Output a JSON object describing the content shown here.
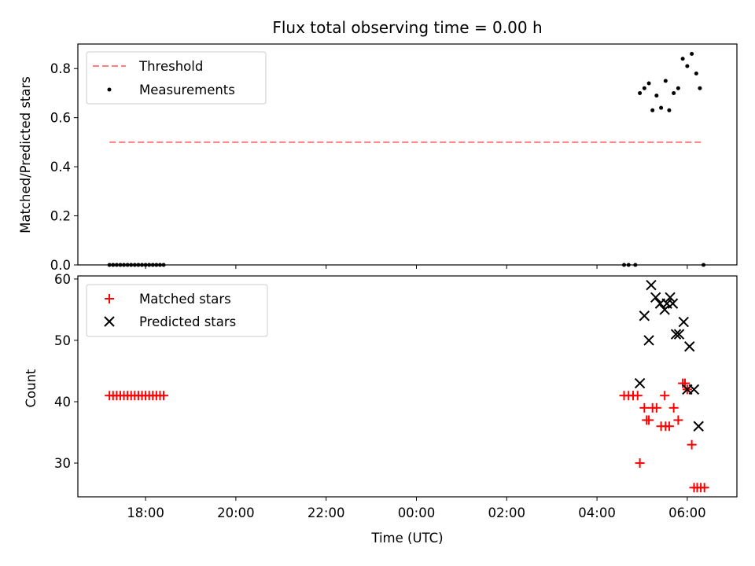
{
  "chart_data": [
    {
      "type": "scatter",
      "title": "Flux total observing time = 0.00 h",
      "xlabel": "",
      "ylabel": "Matched/Predicted stars",
      "ylim": [
        0,
        0.9
      ],
      "yticks": [
        0.0,
        0.2,
        0.4,
        0.6,
        0.8
      ],
      "ytick_labels": [
        "0.0",
        "0.2",
        "0.4",
        "0.6",
        "0.8"
      ],
      "xlim_hours": [
        16.5,
        31.1
      ],
      "xticks_hours": [
        18,
        20,
        22,
        24,
        26,
        28,
        30
      ],
      "grid": false,
      "legend_position": "upper-left",
      "series": [
        {
          "name": "Threshold",
          "style": "dashed-line",
          "color": "#ff7f7f",
          "x_hours": [
            17.2,
            30.3
          ],
          "y": [
            0.5,
            0.5
          ]
        },
        {
          "name": "Measurements",
          "style": "dot",
          "color": "#000000",
          "x_hours": [
            17.2,
            17.28,
            17.36,
            17.44,
            17.52,
            17.6,
            17.68,
            17.76,
            17.84,
            17.92,
            18.0,
            18.08,
            18.16,
            18.24,
            18.32,
            18.4,
            28.6,
            28.7,
            28.85,
            28.95,
            29.05,
            29.15,
            29.23,
            29.32,
            29.42,
            29.52,
            29.6,
            29.7,
            29.8,
            29.9,
            30.0,
            30.1,
            30.2,
            30.28,
            30.36
          ],
          "y": [
            0,
            0,
            0,
            0,
            0,
            0,
            0,
            0,
            0,
            0,
            0,
            0,
            0,
            0,
            0,
            0,
            0,
            0,
            0,
            0.7,
            0.72,
            0.74,
            0.63,
            0.69,
            0.64,
            0.75,
            0.63,
            0.7,
            0.72,
            0.84,
            0.81,
            0.86,
            0.78,
            0.72,
            0
          ]
        }
      ]
    },
    {
      "type": "scatter",
      "title": "",
      "xlabel": "Time (UTC)",
      "ylabel": "Count",
      "ylim": [
        24.5,
        60.5
      ],
      "yticks": [
        30,
        40,
        50,
        60
      ],
      "ytick_labels": [
        "30",
        "40",
        "50",
        "60"
      ],
      "xlim_hours": [
        16.5,
        31.1
      ],
      "xticks_hours": [
        18,
        20,
        22,
        24,
        26,
        28,
        30
      ],
      "xtick_labels": [
        "18:00",
        "20:00",
        "22:00",
        "00:00",
        "02:00",
        "04:00",
        "06:00"
      ],
      "grid": false,
      "legend_position": "upper-left",
      "series": [
        {
          "name": "Matched stars",
          "marker": "plus",
          "color": "#ff0000",
          "x_hours": [
            17.2,
            17.28,
            17.36,
            17.44,
            17.52,
            17.6,
            17.68,
            17.76,
            17.84,
            17.92,
            18.0,
            18.08,
            18.16,
            18.24,
            18.32,
            18.4,
            28.6,
            28.7,
            28.8,
            28.9,
            28.95,
            29.05,
            29.1,
            29.15,
            29.23,
            29.32,
            29.42,
            29.5,
            29.52,
            29.6,
            29.7,
            29.8,
            29.9,
            29.95,
            30.0,
            30.1,
            30.15,
            30.22,
            30.3,
            30.38
          ],
          "y": [
            41,
            41,
            41,
            41,
            41,
            41,
            41,
            41,
            41,
            41,
            41,
            41,
            41,
            41,
            41,
            41,
            41,
            41,
            41,
            41,
            30,
            39,
            37,
            37,
            39,
            39,
            36,
            41,
            36,
            36,
            39,
            37,
            43,
            43,
            42,
            33,
            26,
            26,
            26,
            26
          ]
        },
        {
          "name": "Predicted stars",
          "marker": "x",
          "color": "#000000",
          "x_hours": [
            28.95,
            29.05,
            29.15,
            29.2,
            29.3,
            29.4,
            29.5,
            29.55,
            29.62,
            29.68,
            29.75,
            29.82,
            29.92,
            30.0,
            30.05,
            30.15,
            30.25
          ],
          "y": [
            43,
            54,
            50,
            59,
            57,
            56,
            55,
            56,
            57,
            56,
            51,
            51,
            53,
            42,
            49,
            42,
            36
          ]
        }
      ]
    }
  ]
}
